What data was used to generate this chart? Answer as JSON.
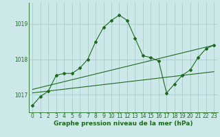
{
  "background_color": "#cce8e8",
  "grid_color": "#aacccc",
  "line_color": "#1a6b1a",
  "xlim": [
    -0.5,
    23.5
  ],
  "ylim": [
    1016.5,
    1019.6
  ],
  "yticks": [
    1017,
    1018,
    1019
  ],
  "xticks": [
    0,
    1,
    2,
    3,
    4,
    5,
    6,
    7,
    8,
    9,
    10,
    11,
    12,
    13,
    14,
    15,
    16,
    17,
    18,
    19,
    20,
    21,
    22,
    23
  ],
  "xlabel": "Graphe pression niveau de la mer (hPa)",
  "series1_x": [
    0,
    1,
    2,
    3,
    4,
    5,
    6,
    7,
    8,
    9,
    10,
    11,
    12,
    13,
    14,
    15,
    16,
    17,
    18,
    19,
    20,
    21,
    22,
    23
  ],
  "series1_y": [
    1016.7,
    1016.95,
    1017.1,
    1017.55,
    1017.6,
    1017.6,
    1017.75,
    1018.0,
    1018.5,
    1018.9,
    1019.1,
    1019.25,
    1019.1,
    1018.6,
    1018.1,
    1018.05,
    1017.95,
    1017.05,
    1017.3,
    1017.55,
    1017.7,
    1018.05,
    1018.3,
    1018.4
  ],
  "trend1_x": [
    0,
    23
  ],
  "trend1_y": [
    1017.15,
    1018.4
  ],
  "trend2_x": [
    0,
    23
  ],
  "trend2_y": [
    1017.05,
    1017.65
  ],
  "marker": "D",
  "markersize": 2.0,
  "linewidth": 0.8,
  "xlabel_fontsize": 6.5,
  "tick_fontsize": 5.5
}
